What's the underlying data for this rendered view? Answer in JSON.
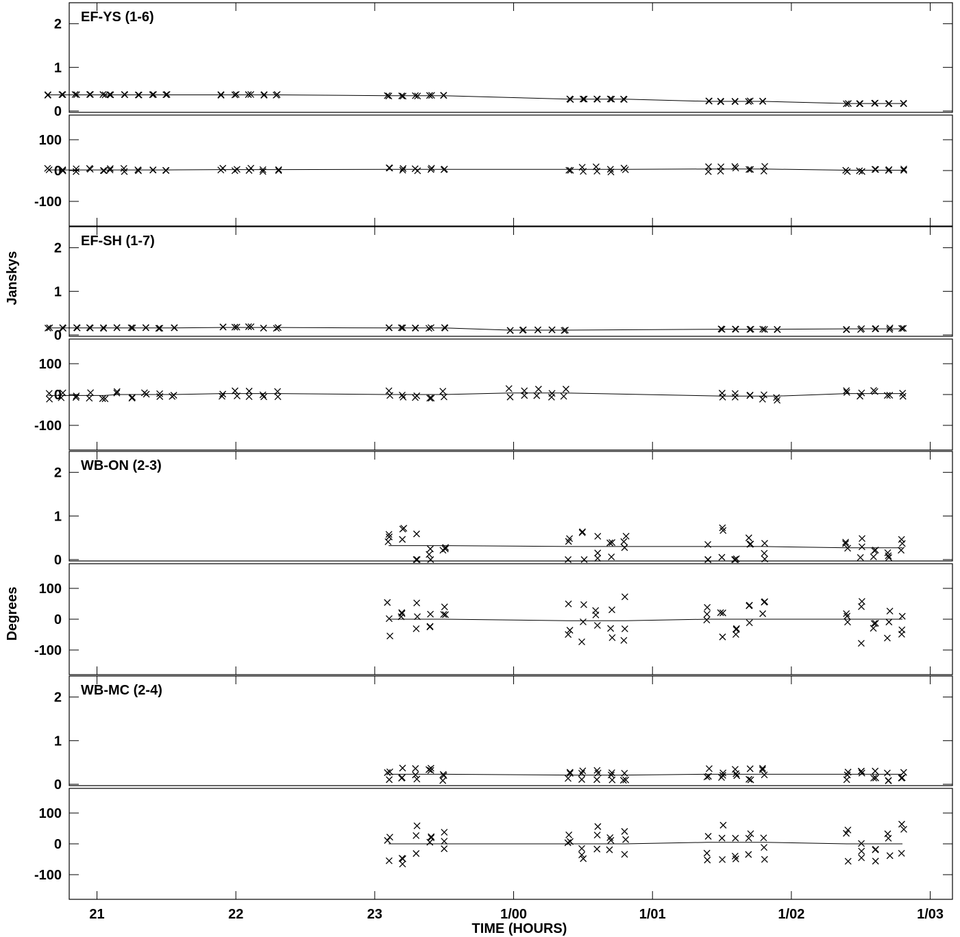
{
  "chart_data": {
    "type": "scatter",
    "y_label_amp": "Janskys",
    "y_label_phase": "Degrees",
    "x_label": "TIME (HOURS)",
    "x_ticks": [
      {
        "t": 0,
        "label": "21"
      },
      {
        "t": 1,
        "label": "22"
      },
      {
        "t": 2,
        "label": "23"
      },
      {
        "t": 3,
        "label": "1/00"
      },
      {
        "t": 4,
        "label": "1/01"
      },
      {
        "t": 5,
        "label": "1/02"
      },
      {
        "t": 6,
        "label": "1/03"
      }
    ],
    "amp_ticks": [
      {
        "v": 0,
        "label": "0"
      },
      {
        "v": 1,
        "label": "1"
      },
      {
        "v": 2,
        "label": "2"
      }
    ],
    "phase_ticks": [
      {
        "v": 100,
        "label": "100"
      },
      {
        "v": 0,
        "label": "0"
      },
      {
        "v": -100,
        "label": "-100"
      }
    ],
    "amp_ylim": [
      0,
      2.45
    ],
    "phase_ylim": [
      -180,
      180
    ],
    "x_range_hours": [
      -0.2,
      6.16
    ],
    "baselines": [
      {
        "name": "EF-YS (1-6)",
        "scans": [
          {
            "t": 0.05,
            "amp": 0.37,
            "amp_spread": 0.01,
            "phase": 2,
            "phase_spread": 6
          },
          {
            "t": 0.5,
            "amp": 0.37,
            "amp_spread": 0.01,
            "phase": 2,
            "phase_spread": 6
          },
          {
            "t": 1.3,
            "amp": 0.37,
            "amp_spread": 0.01,
            "phase": 3,
            "phase_spread": 6
          },
          {
            "t": 2.5,
            "amp": 0.35,
            "amp_spread": 0.01,
            "phase": 4,
            "phase_spread": 5
          },
          {
            "t": 3.8,
            "amp": 0.27,
            "amp_spread": 0.01,
            "phase": 4,
            "phase_spread": 9
          },
          {
            "t": 4.8,
            "amp": 0.22,
            "amp_spread": 0.01,
            "phase": 5,
            "phase_spread": 9
          },
          {
            "t": 5.8,
            "amp": 0.17,
            "amp_spread": 0.01,
            "phase": 1,
            "phase_spread": 5
          }
        ]
      },
      {
        "name": "EF-SH (1-7)",
        "scans": [
          {
            "t": 0.05,
            "amp": 0.16,
            "amp_spread": 0.01,
            "phase": -3,
            "phase_spread": 14
          },
          {
            "t": 0.55,
            "amp": 0.16,
            "amp_spread": 0.01,
            "phase": 0,
            "phase_spread": 12
          },
          {
            "t": 1.3,
            "amp": 0.17,
            "amp_spread": 0.02,
            "phase": 3,
            "phase_spread": 11
          },
          {
            "t": 2.5,
            "amp": 0.16,
            "amp_spread": 0.01,
            "phase": 0,
            "phase_spread": 13
          },
          {
            "t": 3.37,
            "amp": 0.11,
            "amp_spread": 0.01,
            "phase": 5,
            "phase_spread": 20
          },
          {
            "t": 4.9,
            "amp": 0.13,
            "amp_spread": 0.01,
            "phase": -5,
            "phase_spread": 15
          },
          {
            "t": 5.8,
            "amp": 0.14,
            "amp_spread": 0.02,
            "phase": 3,
            "phase_spread": 14
          }
        ]
      },
      {
        "name": "WB-ON (2-3)",
        "scans": [
          {
            "t": 2.5,
            "amp": 0.32,
            "amp_spread": 0.55,
            "phase": 0,
            "phase_spread": 60
          },
          {
            "t": 3.8,
            "amp": 0.3,
            "amp_spread": 0.35,
            "phase": -5,
            "phase_spread": 80
          },
          {
            "t": 4.8,
            "amp": 0.3,
            "amp_spread": 0.55,
            "phase": 0,
            "phase_spread": 60
          },
          {
            "t": 5.8,
            "amp": 0.27,
            "amp_spread": 0.25,
            "phase": 0,
            "phase_spread": 80
          }
        ]
      },
      {
        "name": "WB-MC (2-4)",
        "scans": [
          {
            "t": 2.5,
            "amp": 0.23,
            "amp_spread": 0.15,
            "phase": 0,
            "phase_spread": 70
          },
          {
            "t": 3.8,
            "amp": 0.21,
            "amp_spread": 0.12,
            "phase": 0,
            "phase_spread": 60
          },
          {
            "t": 4.8,
            "amp": 0.23,
            "amp_spread": 0.15,
            "phase": 5,
            "phase_spread": 60
          },
          {
            "t": 5.8,
            "amp": 0.23,
            "amp_spread": 0.15,
            "phase": 0,
            "phase_spread": 70
          }
        ]
      }
    ]
  }
}
